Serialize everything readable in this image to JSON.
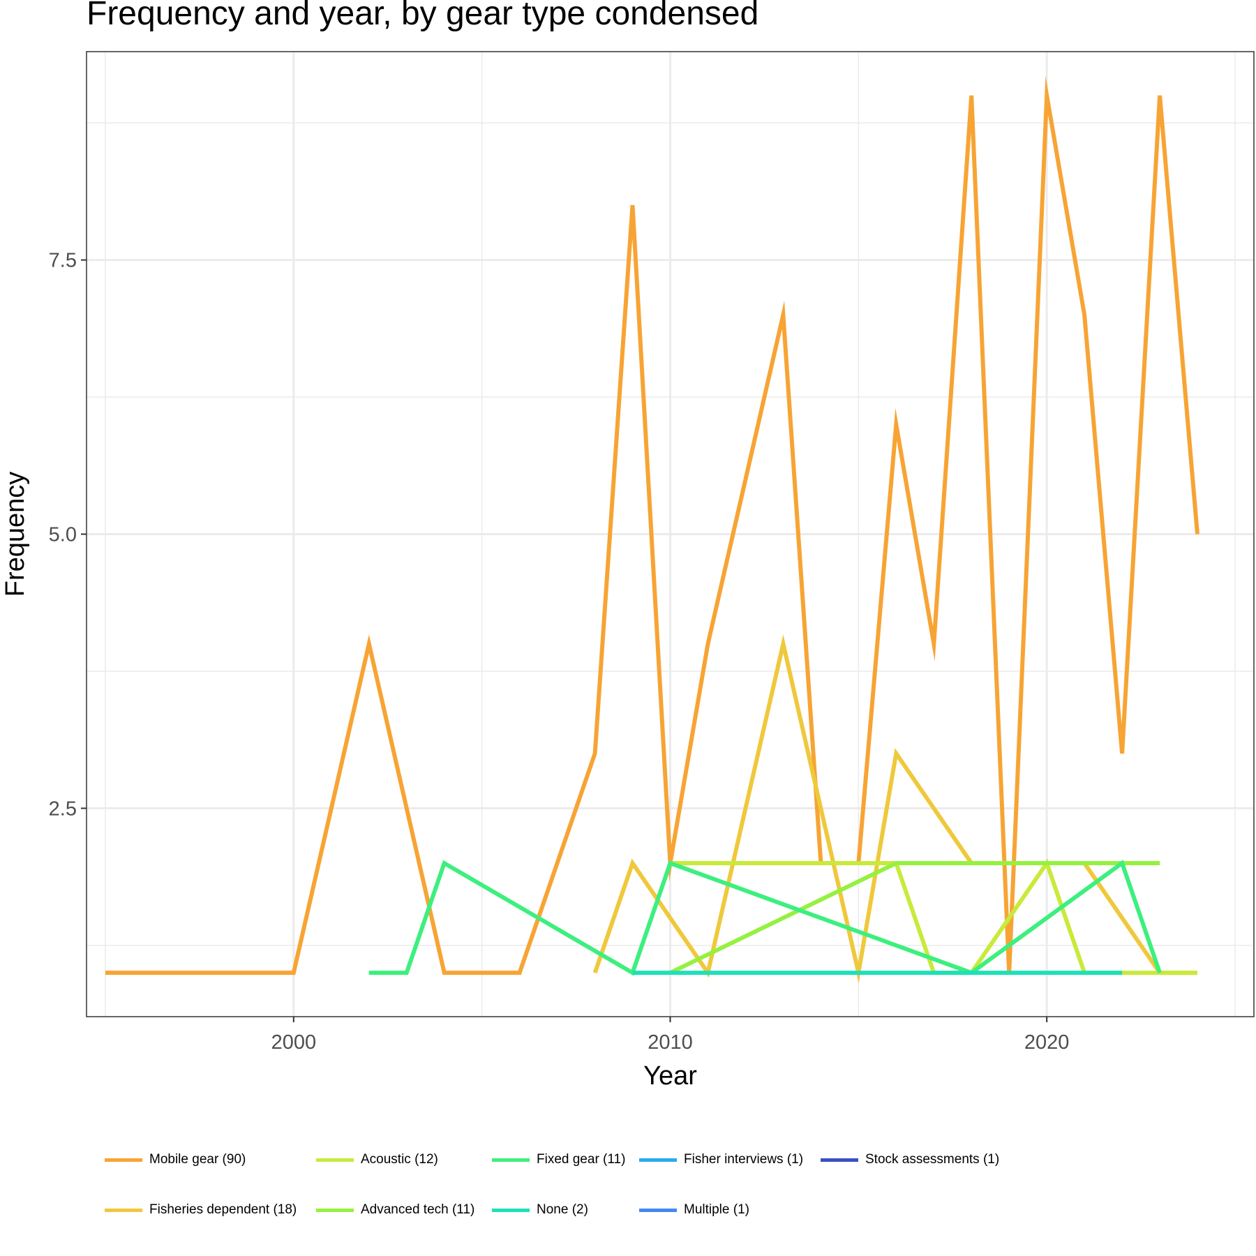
{
  "chart_data": {
    "type": "line",
    "title": "Frequency and year, by gear type condensed",
    "xlabel": "Year",
    "ylabel": "Frequency",
    "xlim": [
      1994.5,
      2025.5
    ],
    "ylim": [
      0.6,
      9.4
    ],
    "x_ticks": [
      2000,
      2010,
      2020
    ],
    "y_ticks": [
      2.5,
      5.0,
      7.5
    ],
    "y_tick_labels": [
      "2.5",
      "5.0",
      "7.5"
    ],
    "grid": true,
    "legend_position": "bottom",
    "series": [
      {
        "name": "Mobile gear (90)",
        "color": "#f7a434",
        "points": [
          [
            1995,
            1
          ],
          [
            1996,
            1
          ],
          [
            1997,
            1
          ],
          [
            1998,
            1
          ],
          [
            1999,
            1
          ],
          [
            2000,
            1
          ],
          [
            2002,
            4
          ],
          [
            2004,
            1
          ],
          [
            2005,
            1
          ],
          [
            2006,
            1
          ],
          [
            2008,
            3
          ],
          [
            2009,
            8
          ],
          [
            2010,
            2
          ],
          [
            2011,
            4
          ],
          [
            2013,
            7
          ],
          [
            2014,
            2
          ],
          [
            2015,
            2
          ],
          [
            2016,
            6
          ],
          [
            2017,
            4
          ],
          [
            2018,
            9
          ],
          [
            2019,
            1
          ],
          [
            2020,
            9
          ],
          [
            2021,
            7
          ],
          [
            2022,
            3
          ],
          [
            2023,
            9
          ],
          [
            2024,
            5
          ]
        ]
      },
      {
        "name": "Fisheries dependent (18)",
        "color": "#efc83c",
        "points": [
          [
            2008,
            1
          ],
          [
            2009,
            2
          ],
          [
            2011,
            1
          ],
          [
            2013,
            4
          ],
          [
            2015,
            1
          ],
          [
            2016,
            3
          ],
          [
            2018,
            2
          ],
          [
            2020,
            2
          ],
          [
            2021,
            2
          ],
          [
            2023,
            1
          ],
          [
            2024,
            1
          ]
        ]
      },
      {
        "name": "Acoustic (12)",
        "color": "#c8ea3a",
        "points": [
          [
            2010,
            2
          ],
          [
            2016,
            2
          ],
          [
            2017,
            1
          ],
          [
            2018,
            1
          ],
          [
            2020,
            2
          ],
          [
            2021,
            1
          ],
          [
            2022,
            1
          ],
          [
            2023,
            1
          ],
          [
            2024,
            1
          ]
        ]
      },
      {
        "name": "Advanced tech (11)",
        "color": "#95f13f",
        "points": [
          [
            2010,
            1
          ],
          [
            2016,
            2
          ],
          [
            2023,
            2
          ]
        ]
      },
      {
        "name": "Fixed gear (11)",
        "color": "#3def7e",
        "points": [
          [
            2002,
            1
          ],
          [
            2003,
            1
          ],
          [
            2004,
            2
          ],
          [
            2009,
            1
          ],
          [
            2010,
            2
          ],
          [
            2018,
            1
          ],
          [
            2022,
            2
          ],
          [
            2023,
            1
          ]
        ]
      },
      {
        "name": "None (2)",
        "color": "#1ee0b8",
        "points": [
          [
            2009,
            1
          ],
          [
            2022,
            1
          ]
        ]
      },
      {
        "name": "Fisher interviews (1)",
        "color": "#28aaee",
        "points": []
      },
      {
        "name": "Multiple (1)",
        "color": "#4288f5",
        "points": []
      },
      {
        "name": "Stock assessments (1)",
        "color": "#3a4fc2",
        "points": []
      }
    ]
  },
  "legend": {
    "rows": [
      [
        "Mobile gear (90)",
        "Acoustic (12)",
        "Fixed gear (11)",
        "Fisher interviews (1)",
        "Stock assessments (1)"
      ],
      [
        "Fisheries dependent (18)",
        "Advanced tech (11)",
        "None (2)",
        "Multiple (1)"
      ]
    ]
  }
}
